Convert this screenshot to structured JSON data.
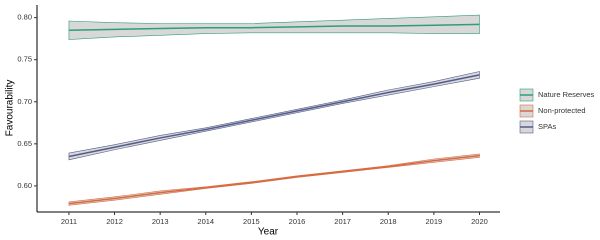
{
  "chart_data": {
    "type": "line",
    "x_label": "Year",
    "y_label": "Favourability",
    "x": [
      2011,
      2012,
      2013,
      2014,
      2015,
      2016,
      2017,
      2018,
      2019,
      2020
    ],
    "series": [
      {
        "name": "Nature Reserves",
        "color": "#2e9e78",
        "band_color": "#a9a9a9",
        "values": [
          0.785,
          0.786,
          0.787,
          0.788,
          0.788,
          0.789,
          0.79,
          0.79,
          0.791,
          0.792
        ],
        "lower": [
          0.774,
          0.777,
          0.779,
          0.781,
          0.782,
          0.782,
          0.782,
          0.782,
          0.781,
          0.781
        ],
        "upper": [
          0.796,
          0.794,
          0.793,
          0.793,
          0.793,
          0.795,
          0.797,
          0.799,
          0.801,
          0.803
        ]
      },
      {
        "name": "Non-protected",
        "color": "#d9693f",
        "band_color": "#a9a9a9",
        "values": [
          0.579,
          0.585,
          0.592,
          0.598,
          0.604,
          0.611,
          0.617,
          0.623,
          0.63,
          0.636
        ],
        "lower": [
          0.577,
          0.583,
          0.59,
          0.597,
          0.603,
          0.61,
          0.616,
          0.622,
          0.628,
          0.634
        ],
        "upper": [
          0.581,
          0.587,
          0.594,
          0.599,
          0.605,
          0.612,
          0.618,
          0.624,
          0.632,
          0.638
        ]
      },
      {
        "name": "SPAs",
        "color": "#545c8e",
        "band_color": "#a9a9a9",
        "values": [
          0.635,
          0.646,
          0.657,
          0.667,
          0.678,
          0.689,
          0.7,
          0.711,
          0.721,
          0.732
        ],
        "lower": [
          0.631,
          0.643,
          0.654,
          0.665,
          0.676,
          0.687,
          0.698,
          0.708,
          0.718,
          0.728
        ],
        "upper": [
          0.639,
          0.649,
          0.66,
          0.669,
          0.68,
          0.691,
          0.702,
          0.714,
          0.724,
          0.736
        ]
      }
    ],
    "xlim": [
      2010.3,
      2020.45
    ],
    "xticks": [
      2011,
      2012,
      2013,
      2014,
      2015,
      2016,
      2017,
      2018,
      2019,
      2020
    ],
    "ylim": [
      0.569,
      0.815
    ],
    "yticks": [
      {
        "value": 0.6,
        "label": "0.60"
      },
      {
        "value": 0.65,
        "label": "0.65"
      },
      {
        "value": 0.7,
        "label": "0.70"
      },
      {
        "value": 0.75,
        "label": "0.75"
      },
      {
        "value": 0.8,
        "label": "0.80"
      }
    ],
    "grid": false,
    "legend": "right"
  }
}
